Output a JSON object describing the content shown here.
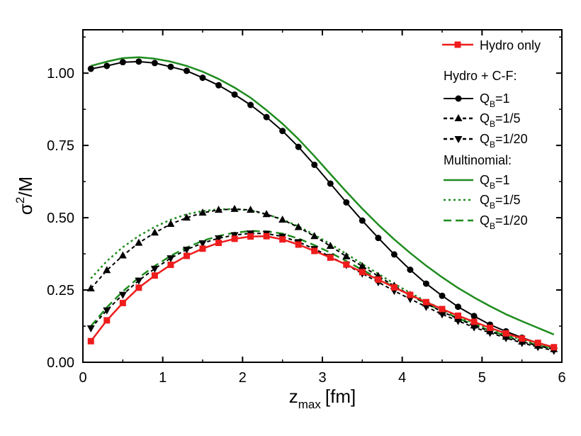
{
  "chart_data": {
    "type": "line",
    "xlabel": {
      "main": "z",
      "sub": "max",
      "unit": "[fm]"
    },
    "ylabel": {
      "main": "σ",
      "sup": "2",
      "rest": "/M"
    },
    "xlim": [
      0,
      6
    ],
    "ylim": [
      0,
      1.15
    ],
    "xticks": [
      0,
      1,
      2,
      3,
      4,
      5,
      6
    ],
    "yticks": [
      0.0,
      0.25,
      0.5,
      0.75,
      1.0
    ],
    "ytick_labels": [
      "0.00",
      "0.25",
      "0.50",
      "0.75",
      "1.00"
    ],
    "grid": false,
    "legend_position": "top-right",
    "legend_headers": {
      "cf": "Hydro + C-F:",
      "multi": "Multinomial:"
    },
    "series": [
      {
        "id": "hydro",
        "name": "Hydro only",
        "color": "#ee1c1c",
        "marker": "square",
        "dash": "solid",
        "x": [
          0.1,
          0.3,
          0.5,
          0.7,
          0.9,
          1.1,
          1.3,
          1.5,
          1.7,
          1.9,
          2.1,
          2.3,
          2.5,
          2.7,
          2.9,
          3.1,
          3.3,
          3.5,
          3.7,
          3.9,
          4.1,
          4.3,
          4.5,
          4.7,
          4.9,
          5.1,
          5.3,
          5.5,
          5.7,
          5.9
        ],
        "y": [
          0.073,
          0.145,
          0.205,
          0.258,
          0.3,
          0.337,
          0.368,
          0.393,
          0.413,
          0.427,
          0.435,
          0.436,
          0.425,
          0.407,
          0.385,
          0.362,
          0.338,
          0.312,
          0.286,
          0.259,
          0.233,
          0.208,
          0.184,
          0.161,
          0.14,
          0.119,
          0.1,
          0.082,
          0.067,
          0.052
        ]
      },
      {
        "id": "cf1",
        "name": "Q",
        "sub": "B",
        "suffix": "=1",
        "color": "#000000",
        "marker": "circle",
        "dash": "solid",
        "x": [
          0.1,
          0.3,
          0.5,
          0.7,
          0.9,
          1.1,
          1.3,
          1.5,
          1.7,
          1.9,
          2.1,
          2.3,
          2.5,
          2.7,
          2.9,
          3.1,
          3.3,
          3.5,
          3.7,
          3.9,
          4.1,
          4.3,
          4.5,
          4.7,
          4.9,
          5.1,
          5.3,
          5.5,
          5.7,
          5.9
        ],
        "y": [
          1.015,
          1.025,
          1.038,
          1.04,
          1.035,
          1.022,
          1.008,
          0.984,
          0.958,
          0.926,
          0.89,
          0.848,
          0.8,
          0.745,
          0.683,
          0.618,
          0.553,
          0.49,
          0.43,
          0.373,
          0.32,
          0.272,
          0.23,
          0.192,
          0.16,
          0.13,
          0.107,
          0.085,
          0.067,
          0.052
        ]
      },
      {
        "id": "cf5",
        "name": "Q",
        "sub": "B",
        "suffix": "=1/5",
        "color": "#000000",
        "marker": "triangle-up",
        "dash": "short",
        "x": [
          0.1,
          0.3,
          0.5,
          0.7,
          0.9,
          1.1,
          1.3,
          1.5,
          1.7,
          1.9,
          2.1,
          2.3,
          2.5,
          2.7,
          2.9,
          3.1,
          3.3,
          3.5,
          3.7,
          3.9,
          4.1,
          4.3,
          4.5,
          4.7,
          4.9,
          5.1,
          5.3,
          5.5,
          5.7,
          5.9
        ],
        "y": [
          0.255,
          0.318,
          0.369,
          0.413,
          0.448,
          0.478,
          0.5,
          0.517,
          0.527,
          0.53,
          0.527,
          0.512,
          0.493,
          0.467,
          0.436,
          0.402,
          0.366,
          0.332,
          0.298,
          0.264,
          0.233,
          0.203,
          0.175,
          0.15,
          0.127,
          0.107,
          0.088,
          0.071,
          0.057,
          0.045
        ]
      },
      {
        "id": "cf20",
        "name": "Q",
        "sub": "B",
        "suffix": "=1/20",
        "color": "#000000",
        "marker": "triangle-down",
        "dash": "short",
        "x": [
          0.1,
          0.3,
          0.5,
          0.7,
          0.9,
          1.1,
          1.3,
          1.5,
          1.7,
          1.9,
          2.1,
          2.3,
          2.5,
          2.7,
          2.9,
          3.1,
          3.3,
          3.5,
          3.7,
          3.9,
          4.1,
          4.3,
          4.5,
          4.7,
          4.9,
          5.1,
          5.3,
          5.5,
          5.7,
          5.9
        ],
        "y": [
          0.118,
          0.18,
          0.234,
          0.283,
          0.324,
          0.36,
          0.39,
          0.412,
          0.429,
          0.44,
          0.446,
          0.445,
          0.435,
          0.416,
          0.392,
          0.365,
          0.337,
          0.307,
          0.277,
          0.247,
          0.219,
          0.192,
          0.166,
          0.143,
          0.121,
          0.102,
          0.084,
          0.067,
          0.053,
          0.04
        ]
      },
      {
        "id": "m1",
        "name": "Q",
        "sub": "B",
        "suffix": "=1",
        "color": "#1e8c1e",
        "marker": "none",
        "dash": "solid",
        "x": [
          0.1,
          0.3,
          0.5,
          0.7,
          0.9,
          1.1,
          1.3,
          1.5,
          1.7,
          1.9,
          2.1,
          2.3,
          2.5,
          2.7,
          2.9,
          3.1,
          3.3,
          3.5,
          3.7,
          3.9,
          4.1,
          4.3,
          4.5,
          4.7,
          4.9,
          5.1,
          5.3,
          5.5,
          5.7,
          5.9
        ],
        "y": [
          1.025,
          1.04,
          1.052,
          1.055,
          1.05,
          1.04,
          1.025,
          1.005,
          0.98,
          0.95,
          0.915,
          0.872,
          0.825,
          0.772,
          0.713,
          0.651,
          0.59,
          0.531,
          0.476,
          0.425,
          0.378,
          0.334,
          0.294,
          0.257,
          0.224,
          0.194,
          0.166,
          0.142,
          0.119,
          0.096
        ]
      },
      {
        "id": "m5",
        "name": "Q",
        "sub": "B",
        "suffix": "=1/5",
        "color": "#1e8c1e",
        "marker": "none",
        "dash": "dot",
        "x": [
          0.1,
          0.3,
          0.5,
          0.7,
          0.9,
          1.1,
          1.3,
          1.5,
          1.7,
          1.9,
          2.1,
          2.3,
          2.5,
          2.7,
          2.9,
          3.1,
          3.3,
          3.5,
          3.7,
          3.9,
          4.1,
          4.3,
          4.5,
          4.7,
          4.9,
          5.1,
          5.3,
          5.5,
          5.7,
          5.9
        ],
        "y": [
          0.29,
          0.35,
          0.398,
          0.437,
          0.468,
          0.493,
          0.512,
          0.523,
          0.529,
          0.53,
          0.525,
          0.512,
          0.494,
          0.47,
          0.441,
          0.409,
          0.375,
          0.34,
          0.306,
          0.272,
          0.24,
          0.211,
          0.183,
          0.158,
          0.135,
          0.114,
          0.095,
          0.078,
          0.063,
          0.05
        ]
      },
      {
        "id": "m20",
        "name": "Q",
        "sub": "B",
        "suffix": "=1/20",
        "color": "#1e8c1e",
        "marker": "none",
        "dash": "long",
        "x": [
          0.1,
          0.3,
          0.5,
          0.7,
          0.9,
          1.1,
          1.3,
          1.5,
          1.7,
          1.9,
          2.1,
          2.3,
          2.5,
          2.7,
          2.9,
          3.1,
          3.3,
          3.5,
          3.7,
          3.9,
          4.1,
          4.3,
          4.5,
          4.7,
          4.9,
          5.1,
          5.3,
          5.5,
          5.7,
          5.9
        ],
        "y": [
          0.125,
          0.19,
          0.245,
          0.293,
          0.333,
          0.368,
          0.397,
          0.42,
          0.437,
          0.448,
          0.454,
          0.453,
          0.445,
          0.428,
          0.405,
          0.379,
          0.35,
          0.32,
          0.29,
          0.26,
          0.231,
          0.203,
          0.177,
          0.152,
          0.13,
          0.11,
          0.091,
          0.074,
          0.059,
          0.046
        ]
      }
    ]
  }
}
